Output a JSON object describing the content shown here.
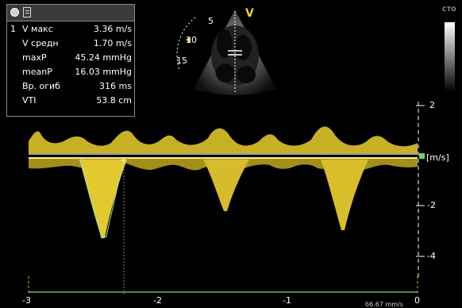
{
  "measurement_panel": {
    "index": "1",
    "rows": [
      {
        "label": "V макс",
        "value": "3.36 m/s"
      },
      {
        "label": "V средн",
        "value": "1.70 m/s"
      },
      {
        "label": "maxP",
        "value": "45.24 mmHg"
      },
      {
        "label": "meanP",
        "value": "16.03 mmHg"
      },
      {
        "label": "Вр. огиб",
        "value": "316 ms"
      },
      {
        "label": "VTI",
        "value": "53.8 cm"
      }
    ]
  },
  "sector_view": {
    "mode_marker": "V",
    "depth_labels": [
      "5",
      "10",
      "15"
    ]
  },
  "corner_label": "сто",
  "velocity_scale": {
    "tick_labels": [
      "2",
      "-2",
      "-4"
    ],
    "unit": "[m/s]"
  },
  "time_axis": {
    "tick_labels": [
      "-3",
      "-2",
      "-1",
      "0"
    ],
    "sweep_label": "66.67 mm/s"
  },
  "colors": {
    "doppler": "#e8d02c",
    "baseline": "#f4ec9a",
    "trace": "#9fe39f",
    "marker": "#6fd36f"
  }
}
